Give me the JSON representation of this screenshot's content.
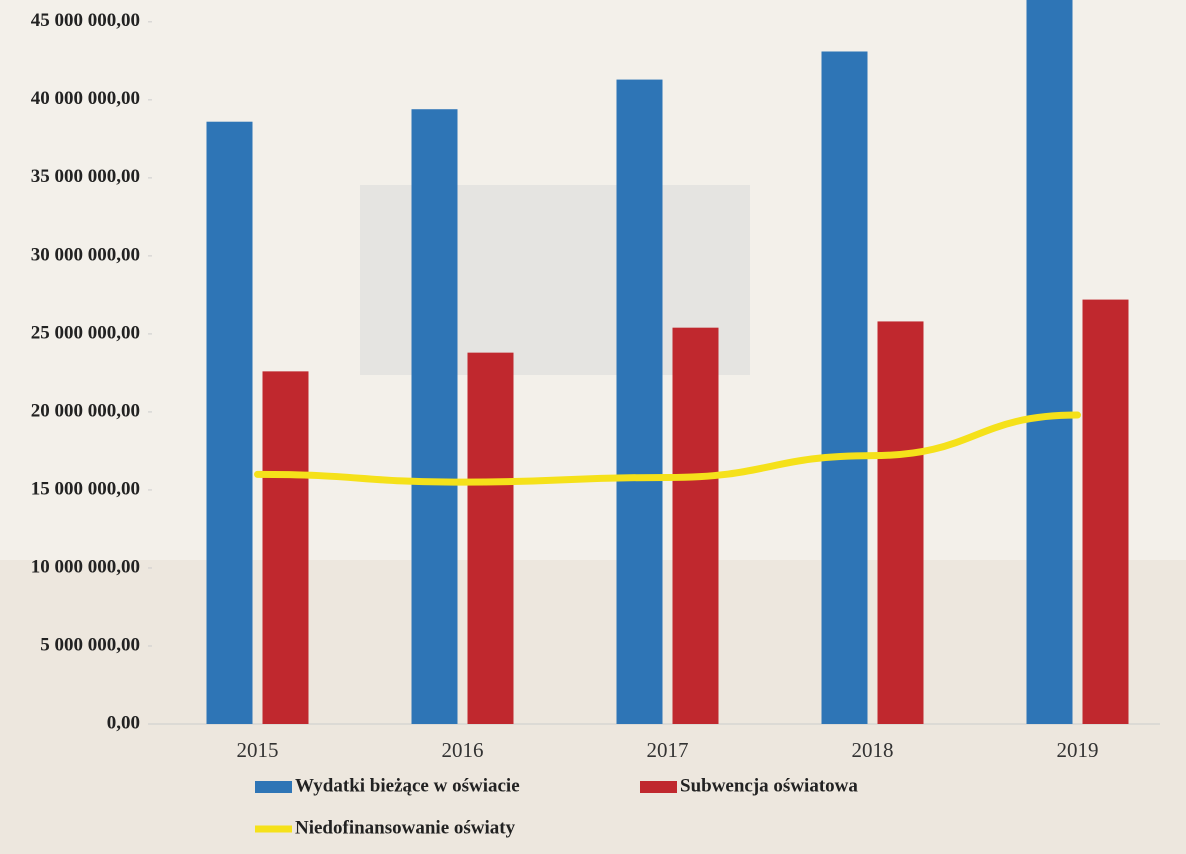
{
  "chart_data": {
    "type": "bar",
    "categories": [
      "2015",
      "2016",
      "2017",
      "2018",
      "2019"
    ],
    "series": [
      {
        "name": "Wydatki bieżące w oświacie",
        "color": "#2e75b6",
        "values": [
          38600000,
          39400000,
          41300000,
          43100000,
          46500000
        ]
      },
      {
        "name": "Subwencja oświatowa",
        "color": "#c0282e",
        "values": [
          22600000,
          23800000,
          25400000,
          25800000,
          27200000
        ]
      },
      {
        "name": "Niedofinansowanie oświaty",
        "color": "#f5e11a",
        "type": "line",
        "values": [
          16000000,
          15500000,
          15800000,
          17200000,
          19800000
        ]
      }
    ],
    "ylim": [
      0,
      46400000
    ],
    "yticks": [
      {
        "value": 0,
        "label": "0,00"
      },
      {
        "value": 5000000,
        "label": "5 000 000,00"
      },
      {
        "value": 10000000,
        "label": "10 000 000,00"
      },
      {
        "value": 15000000,
        "label": "15 000 000,00"
      },
      {
        "value": 20000000,
        "label": "20 000 000,00"
      },
      {
        "value": 25000000,
        "label": "25 000 000,00"
      },
      {
        "value": 30000000,
        "label": "30 000 000,00"
      },
      {
        "value": 35000000,
        "label": "35 000 000,00"
      },
      {
        "value": 40000000,
        "label": "40 000 000,00"
      },
      {
        "value": 45000000,
        "label": "45 000 000,00"
      }
    ],
    "grid": false
  }
}
